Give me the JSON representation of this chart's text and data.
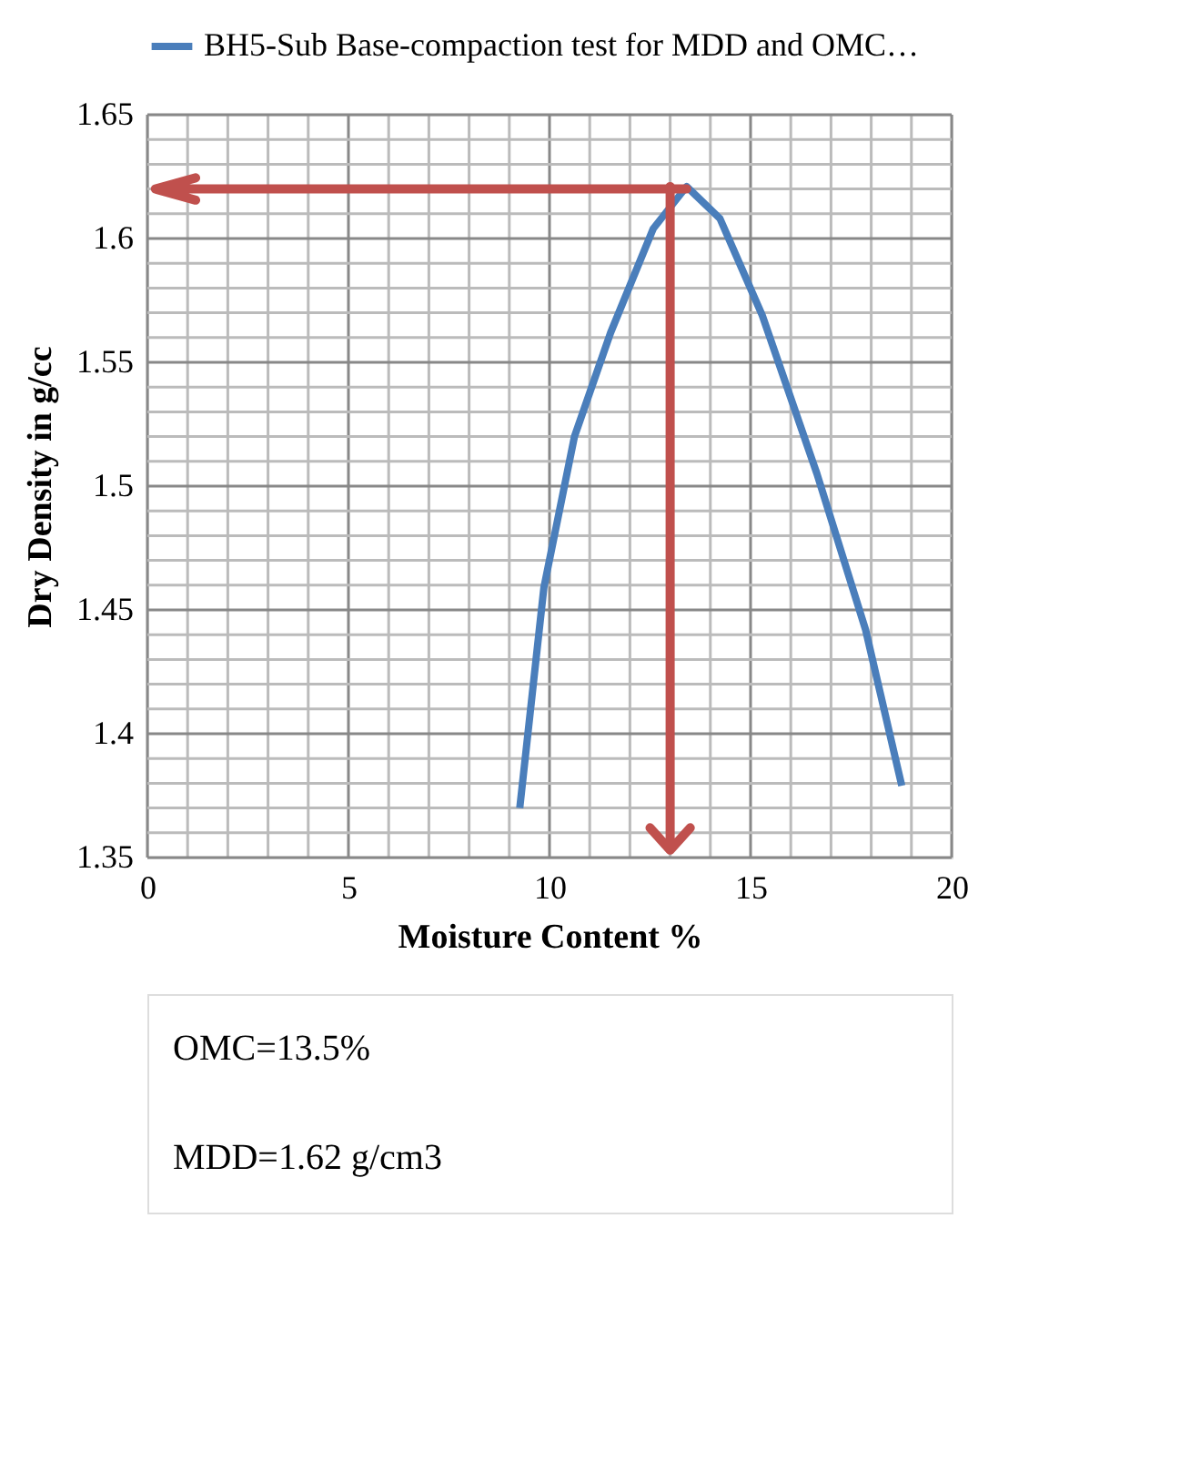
{
  "chart_data": {
    "type": "line",
    "xlabel": "Moisture Content %",
    "ylabel": "Dry Density in g/cc",
    "x": [
      9.26,
      9.86,
      10.62,
      11.52,
      12.58,
      13.41,
      14.24,
      15.29,
      16.65,
      17.86,
      18.76
    ],
    "series": [
      {
        "name": "BH5-Sub Base-compaction test for MDD and OMC…",
        "color": "#4a7ebb",
        "values": [
          1.37,
          1.459,
          1.52,
          1.562,
          1.604,
          1.621,
          1.608,
          1.569,
          1.505,
          1.442,
          1.379
        ]
      }
    ],
    "xlim": [
      0,
      20
    ],
    "xticks": [
      0,
      {
        "value": 1,
        "label": null
      },
      {
        "value": 2,
        "label": null
      },
      {
        "value": 3,
        "label": null
      },
      {
        "value": 4,
        "label": null
      },
      5,
      {
        "value": 6,
        "label": null
      },
      {
        "value": 7,
        "label": null
      },
      {
        "value": 8,
        "label": null
      },
      {
        "value": 9,
        "label": null
      },
      10,
      {
        "value": 11,
        "label": null
      },
      {
        "value": 12,
        "label": null
      },
      {
        "value": 13,
        "label": null
      },
      {
        "value": 14,
        "label": null
      },
      15,
      {
        "value": 16,
        "label": null
      },
      {
        "value": 17,
        "label": null
      },
      {
        "value": 18,
        "label": null
      },
      {
        "value": 19,
        "label": null
      },
      20
    ],
    "ylim": [
      1.35,
      1.65
    ],
    "yticks": [
      1.35,
      {
        "value": 1.36,
        "label": null
      },
      {
        "value": 1.37,
        "label": null
      },
      {
        "value": 1.38,
        "label": null
      },
      {
        "value": 1.39,
        "label": null
      },
      1.4,
      {
        "value": 1.41,
        "label": null
      },
      {
        "value": 1.42,
        "label": null
      },
      {
        "value": 1.43,
        "label": null
      },
      {
        "value": 1.44,
        "label": null
      },
      1.45,
      {
        "value": 1.46,
        "label": null
      },
      {
        "value": 1.47,
        "label": null
      },
      {
        "value": 1.48,
        "label": null
      },
      {
        "value": 1.49,
        "label": null
      },
      1.5,
      {
        "value": 1.51,
        "label": null
      },
      {
        "value": 1.52,
        "label": null
      },
      {
        "value": 1.53,
        "label": null
      },
      {
        "value": 1.54,
        "label": null
      },
      1.55,
      {
        "value": 1.56,
        "label": null
      },
      {
        "value": 1.57,
        "label": null
      },
      {
        "value": 1.58,
        "label": null
      },
      {
        "value": 1.59,
        "label": null
      },
      1.6,
      {
        "value": 1.61,
        "label": null
      },
      {
        "value": 1.62,
        "label": null
      },
      {
        "value": 1.63,
        "label": null
      },
      {
        "value": 1.64,
        "label": null
      },
      1.65
    ],
    "ref_lines": [
      {
        "axis": "y",
        "value": 1.62,
        "color": "#c0504d"
      },
      {
        "axis": "x",
        "value": 13,
        "color": "#c0504d"
      }
    ],
    "grid": true,
    "legend": "top",
    "marker": "none",
    "line_style": "solid",
    "annotations": [
      "OMC=13.5%",
      "MDD=1.62 g/cm3"
    ]
  }
}
